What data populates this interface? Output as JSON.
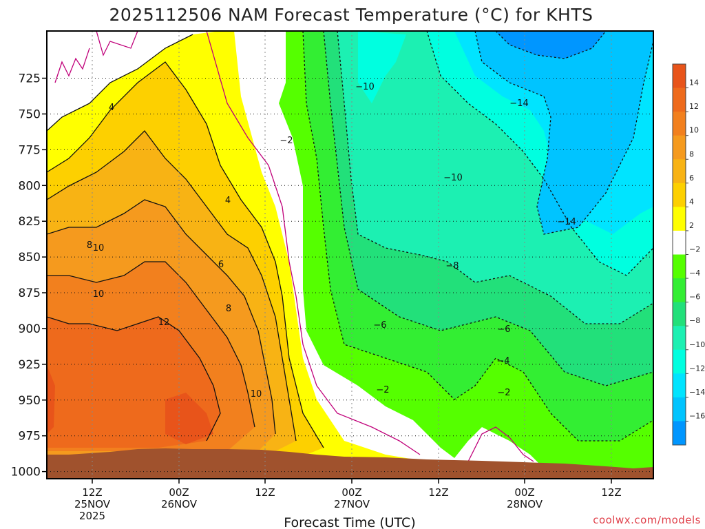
{
  "chart_data": {
    "type": "heatmap",
    "title": "2025112506 NAM Forecast Temperature (°C) for KHTS",
    "xlabel": "Forecast Time (UTC)",
    "ylabel": "",
    "y_unit": "hPa",
    "ylim": [
      1005,
      692
    ],
    "y_ticks": [
      {
        "value": 725,
        "label": "725"
      },
      {
        "value": 750,
        "label": "750"
      },
      {
        "value": 775,
        "label": "775"
      },
      {
        "value": 800,
        "label": "800"
      },
      {
        "value": 825,
        "label": "825"
      },
      {
        "value": 850,
        "label": "850"
      },
      {
        "value": 875,
        "label": "875"
      },
      {
        "value": 900,
        "label": "900"
      },
      {
        "value": 925,
        "label": "925"
      },
      {
        "value": 950,
        "label": "950"
      },
      {
        "value": 975,
        "label": "975"
      },
      {
        "value": 1000,
        "label": "1000"
      }
    ],
    "x_ticks": [
      {
        "label": "12Z",
        "sub": "25NOV",
        "sub2": "2025"
      },
      {
        "label": "00Z",
        "sub": "26NOV",
        "sub2": ""
      },
      {
        "label": "12Z",
        "sub": "",
        "sub2": ""
      },
      {
        "label": "00Z",
        "sub": "27NOV",
        "sub2": ""
      },
      {
        "label": "12Z",
        "sub": "",
        "sub2": ""
      },
      {
        "label": "00Z",
        "sub": "28NOV",
        "sub2": ""
      },
      {
        "label": "12Z",
        "sub": "",
        "sub2": ""
      }
    ],
    "grid": true,
    "colorbar": {
      "ticks": [
        "14",
        "12",
        "10",
        "8",
        "6",
        "4",
        "2",
        "−2",
        "−4",
        "−6",
        "−8",
        "−10",
        "−12",
        "−14",
        "−16"
      ],
      "colors": [
        "#e8541a",
        "#ee6a1c",
        "#f2801e",
        "#f59a1e",
        "#f8b314",
        "#fdd000",
        "#ffff00",
        "#ffffff",
        "#55ff00",
        "#33ee33",
        "#22e07a",
        "#1cf0b2",
        "#00ffe0",
        "#00e4ff",
        "#00c4ff",
        "#0096ff"
      ]
    },
    "contour_labels": [
      "4",
      "4",
      "6",
      "8",
      "8",
      "10",
      "10",
      "12",
      "10",
      "−2",
      "−2",
      "−2",
      "−4",
      "−6",
      "−6",
      "−8",
      "−10",
      "−10",
      "−14",
      "−14"
    ],
    "terrain_color": "#a0522d"
  },
  "credit": "coolwx.com/models"
}
